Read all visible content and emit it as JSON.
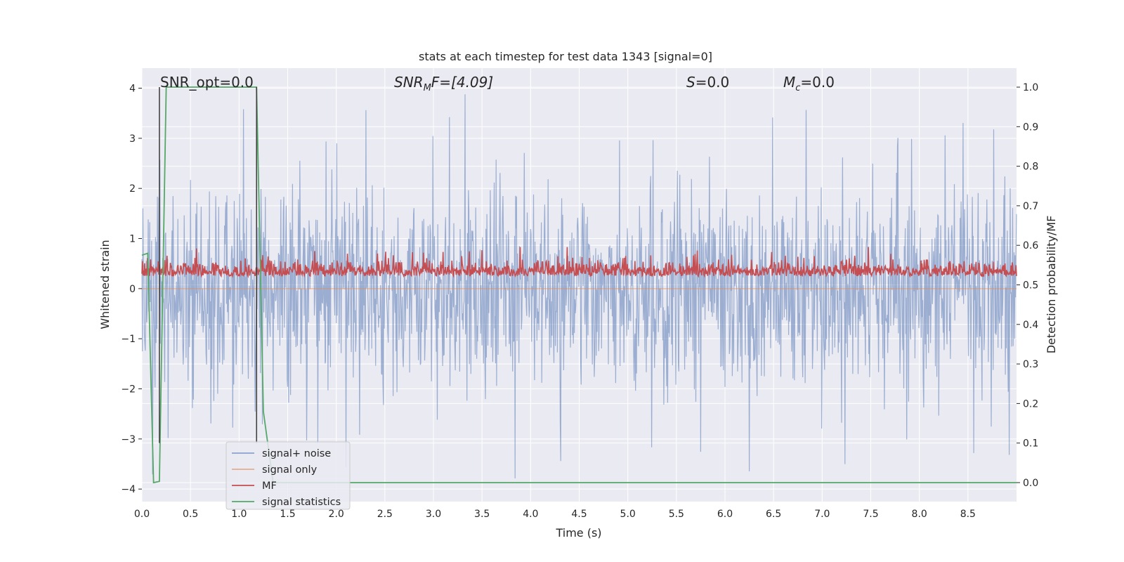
{
  "chart_data": {
    "type": "line",
    "title": "stats at each timestep for test data 1343 [signal=0]",
    "xlabel": "Time (s)",
    "ylabel": "Whitened strain",
    "y2label": "Detection probability/MF",
    "xlim": [
      0.0,
      9.0
    ],
    "ylim": [
      -4.25,
      4.4
    ],
    "y2lim": [
      -0.048,
      1.048
    ],
    "xticks": [
      "0.0",
      "0.5",
      "1.0",
      "1.5",
      "2.0",
      "2.5",
      "3.0",
      "3.5",
      "4.0",
      "4.5",
      "5.0",
      "5.5",
      "6.0",
      "6.5",
      "7.0",
      "7.5",
      "8.0",
      "8.5"
    ],
    "yticks": [
      "−4",
      "−3",
      "−2",
      "−1",
      "0",
      "1",
      "2",
      "3",
      "4"
    ],
    "y2ticks": [
      "0.0",
      "0.1",
      "0.2",
      "0.3",
      "0.4",
      "0.5",
      "0.6",
      "0.7",
      "0.8",
      "0.9",
      "1.0"
    ],
    "grid": true,
    "legend_position": "lower-left",
    "annotations": {
      "snr_opt": "SNR_opt=0.0",
      "snr_mf_sym": "SNR",
      "snr_mf_sub": "M",
      "snr_mf_rest": "F=[4.09]",
      "s_sym": "S",
      "s_rest": "=0.0",
      "mc_sym": "M",
      "mc_sub": "c",
      "mc_rest": "=0.0"
    },
    "vlines_x": [
      0.18,
      1.18
    ],
    "series": [
      {
        "name": "signal+ noise",
        "color": "#4c72b0",
        "axis": "left",
        "kind": "noise",
        "amplitude_range": [
          -3.9,
          4.0
        ],
        "typical_envelope": [
          -2.0,
          2.0
        ]
      },
      {
        "name": "signal only",
        "color": "#dd8452",
        "axis": "left",
        "kind": "flat",
        "values": [
          0.0
        ]
      },
      {
        "name": "MF",
        "color": "#c44e52",
        "axis": "right",
        "kind": "noise",
        "range": [
          0.49,
          0.6
        ],
        "typical": 0.53
      },
      {
        "name": "signal statistics",
        "color": "#55a868",
        "axis": "right",
        "kind": "step",
        "x": [
          0.0,
          0.06,
          0.12,
          0.18,
          0.25,
          1.18,
          1.25,
          1.35,
          9.0
        ],
        "y": [
          0.575,
          0.58,
          0.0,
          0.003,
          1.0,
          1.0,
          0.18,
          0.0,
          0.0
        ]
      }
    ],
    "colors": {
      "plot_background": "#eaeaf2",
      "grid": "#ffffff",
      "noise": "#4c72b0",
      "signal_only": "#dd8452",
      "mf": "#c44e52",
      "stat": "#55a868",
      "vline": "#444444"
    }
  }
}
